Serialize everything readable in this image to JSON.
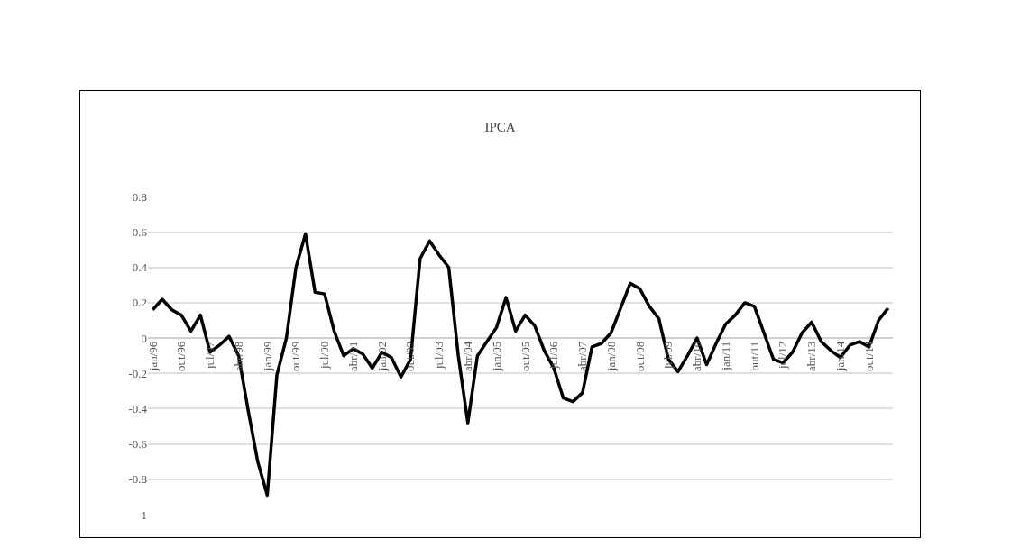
{
  "chart_data": {
    "type": "line",
    "title": "IPCA",
    "categories": [
      "jan/96",
      null,
      null,
      "out/96",
      null,
      null,
      "jul/97",
      null,
      null,
      "abr/98",
      null,
      null,
      "jan/99",
      null,
      null,
      "out/99",
      null,
      null,
      "jul/00",
      null,
      null,
      "abr/01",
      null,
      null,
      "jan/02",
      null,
      null,
      "out/02",
      null,
      null,
      "jul/03",
      null,
      null,
      "abr/04",
      null,
      null,
      "jan/05",
      null,
      null,
      "out/05",
      null,
      null,
      "jul/06",
      null,
      null,
      "abr/07",
      null,
      null,
      "jan/08",
      null,
      null,
      "out/08",
      null,
      null,
      "jul/09",
      null,
      null,
      "abr/10",
      null,
      null,
      "jan/11",
      null,
      null,
      "out/11",
      null,
      null,
      "jul/12",
      null,
      null,
      "abr/13",
      null,
      null,
      "jan/14",
      null,
      null,
      "out/14",
      null,
      null
    ],
    "series": [
      {
        "color": "#000000",
        "values": [
          0.16,
          0.22,
          0.16,
          0.13,
          0.04,
          0.13,
          -0.08,
          -0.04,
          0.01,
          -0.1,
          -0.41,
          -0.7,
          -0.89,
          -0.21,
          0.0,
          0.4,
          0.59,
          0.26,
          0.25,
          0.04,
          -0.1,
          -0.06,
          -0.09,
          -0.17,
          -0.08,
          -0.11,
          -0.22,
          -0.12,
          0.45,
          0.55,
          0.47,
          0.4,
          -0.1,
          -0.48,
          -0.1,
          -0.02,
          0.06,
          0.23,
          0.04,
          0.13,
          0.07,
          -0.07,
          -0.17,
          -0.34,
          -0.36,
          -0.31,
          -0.05,
          -0.03,
          0.03,
          0.17,
          0.31,
          0.28,
          0.18,
          0.11,
          -0.12,
          -0.19,
          -0.1,
          0.0,
          -0.15,
          -0.03,
          0.08,
          0.13,
          0.2,
          0.18,
          0.03,
          -0.12,
          -0.14,
          -0.08,
          0.03,
          0.09,
          -0.02,
          -0.07,
          -0.11,
          -0.04,
          -0.02,
          -0.05,
          0.1,
          0.17
        ]
      }
    ],
    "ylim": [
      -1,
      0.8
    ],
    "yticks": [
      -1,
      -0.8,
      -0.6,
      -0.4,
      -0.2,
      0,
      0.2,
      0.4,
      0.6,
      0.8
    ],
    "grid": "y",
    "marker": "none",
    "line_style": "solid"
  }
}
